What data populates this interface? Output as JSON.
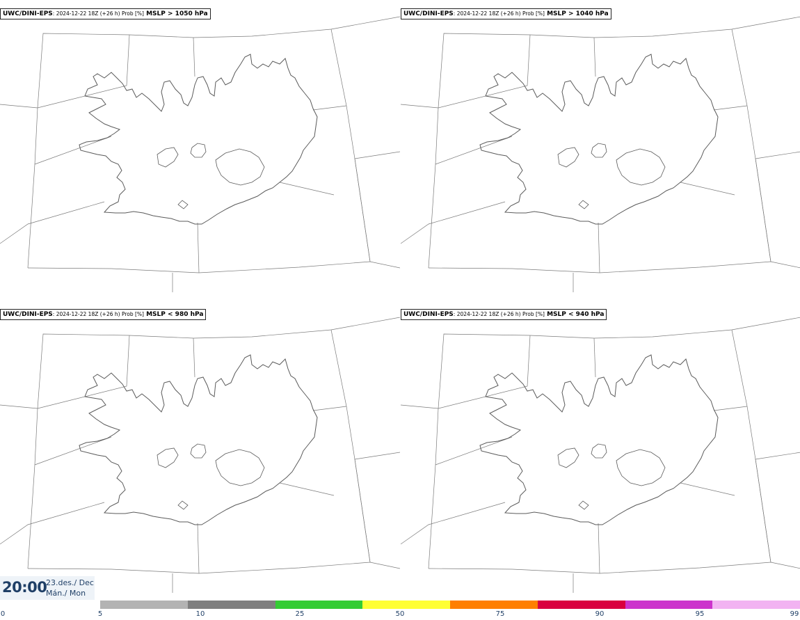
{
  "panels": [
    {
      "source": "UWC/DINI-EPS",
      "meta": ": 2024-12-22 18Z (+26 h) Prob [%]",
      "variable": " MSLP > 1050 hPa",
      "has_shading": false
    },
    {
      "source": "UWC/DINI-EPS",
      "meta": ": 2024-12-22 18Z (+26 h) Prob [%]",
      "variable": " MSLP > 1040 hPa",
      "has_shading": false
    },
    {
      "source": "UWC/DINI-EPS",
      "meta": ": 2024-12-22 18Z (+26 h) Prob [%]",
      "variable": " MSLP < 980 hPa",
      "has_shading": true
    },
    {
      "source": "UWC/DINI-EPS",
      "meta": ": 2024-12-22 18Z (+26 h) Prob [%]",
      "variable": " MSLP < 940 hPa",
      "has_shading": false
    }
  ],
  "valid_time": {
    "time": "20:00",
    "date_line1": "23.des./ Dec",
    "date_line2": "Mán./ Mon"
  },
  "colorbar": {
    "ticks": [
      "0",
      "5",
      "10",
      "25",
      "50",
      "75",
      "90",
      "95",
      "99"
    ],
    "colors": [
      "#b3b3b3",
      "#7f7f7f",
      "#33cc33",
      "#ffff33",
      "#ff7f00",
      "#d9003f",
      "#cc33cc",
      "#f2b3f2"
    ]
  },
  "colors": {
    "coastline": "#5a5a5a",
    "borders": "#7a7a7a",
    "text_dark": "#1f3f66"
  }
}
